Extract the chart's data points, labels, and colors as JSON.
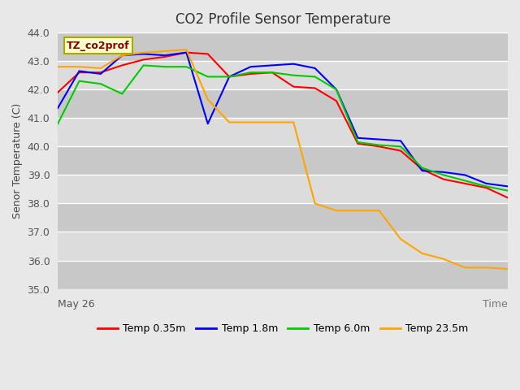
{
  "title": "CO2 Profile Sensor Temperature",
  "ylabel": "Senor Temperature (C)",
  "xlabel": "Time",
  "xlim": [
    0,
    21
  ],
  "ylim": [
    35.0,
    44.0
  ],
  "yticks": [
    35.0,
    36.0,
    37.0,
    38.0,
    39.0,
    40.0,
    41.0,
    42.0,
    43.0,
    44.0
  ],
  "xstart_label": "May 26",
  "annotation_text": "TZ_co2prof",
  "annotation_color": "#8B0000",
  "annotation_bg": "#FFFFCC",
  "annotation_border": "#AAAA00",
  "fig_bg": "#E8E8E8",
  "band_light": "#DCDCDC",
  "band_dark": "#C8C8C8",
  "grid_color": "#FFFFFF",
  "series": {
    "temp_035": {
      "label": "Temp 0.35m",
      "color": "#FF0000",
      "values": [
        41.9,
        42.6,
        42.6,
        42.85,
        43.05,
        43.15,
        43.3,
        43.25,
        42.45,
        42.55,
        42.6,
        42.1,
        42.05,
        41.6,
        40.1,
        40.0,
        39.85,
        39.2,
        38.85,
        38.7,
        38.55,
        38.2
      ]
    },
    "temp_18": {
      "label": "Temp 1.8m",
      "color": "#0000FF",
      "values": [
        41.35,
        42.65,
        42.55,
        43.2,
        43.25,
        43.2,
        43.3,
        40.8,
        42.45,
        42.8,
        42.85,
        42.9,
        42.75,
        42.0,
        40.3,
        40.25,
        40.2,
        39.15,
        39.1,
        39.0,
        38.7,
        38.6
      ]
    },
    "temp_60": {
      "label": "Temp 6.0m",
      "color": "#00CC00",
      "values": [
        40.8,
        42.3,
        42.2,
        41.85,
        42.85,
        42.8,
        42.8,
        42.45,
        42.45,
        42.6,
        42.6,
        42.5,
        42.45,
        42.0,
        40.15,
        40.05,
        40.0,
        39.25,
        39.0,
        38.8,
        38.6,
        38.45
      ]
    },
    "temp_235": {
      "label": "Temp 23.5m",
      "color": "#FFA500",
      "values": [
        42.8,
        42.8,
        42.75,
        43.2,
        43.3,
        43.35,
        43.4,
        41.65,
        40.85,
        40.85,
        40.85,
        40.85,
        38.0,
        37.75,
        37.75,
        37.75,
        36.75,
        36.25,
        36.05,
        35.75,
        35.75,
        35.7
      ]
    }
  },
  "legend_entries": [
    "Temp 0.35m",
    "Temp 1.8m",
    "Temp 6.0m",
    "Temp 23.5m"
  ],
  "legend_colors": [
    "#FF0000",
    "#0000FF",
    "#00CC00",
    "#FFA500"
  ]
}
